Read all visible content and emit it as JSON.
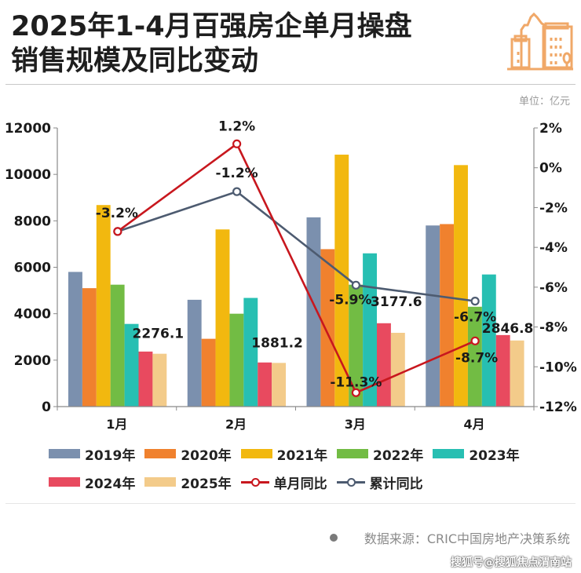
{
  "header": {
    "title_line1": "2025年1-4月百强房企单月操盘",
    "title_line2": "销售规模及同比变动",
    "icon": "city-buildings-icon",
    "icon_color": "#f0a868",
    "unit": "单位：亿元"
  },
  "chart_data": {
    "type": "bar",
    "title": "2025年1-4月百强房企单月操盘销售规模及同比变动",
    "categories": [
      "1月",
      "2月",
      "3月",
      "4月"
    ],
    "y_left": {
      "ticks": [
        "0",
        "2000",
        "4000",
        "6000",
        "8000",
        "10000",
        "12000"
      ],
      "range": [
        0,
        12000
      ],
      "unit": "亿元"
    },
    "y_right": {
      "ticks": [
        "2%",
        "0%",
        "-2%",
        "-4%",
        "-6%",
        "-8%",
        "-10%",
        "-12%"
      ],
      "range": [
        -12,
        2
      ]
    },
    "series": [
      {
        "name": "2019年",
        "type": "bar",
        "color": "#7b90ae",
        "values": [
          5800,
          4600,
          8150,
          7800
        ]
      },
      {
        "name": "2020年",
        "type": "bar",
        "color": "#f0812e",
        "values": [
          5100,
          2920,
          6780,
          7860
        ]
      },
      {
        "name": "2021年",
        "type": "bar",
        "color": "#f2b80f",
        "values": [
          8680,
          7630,
          10850,
          10400
        ]
      },
      {
        "name": "2022年",
        "type": "bar",
        "color": "#72bc44",
        "values": [
          5250,
          4000,
          5250,
          4300
        ]
      },
      {
        "name": "2023年",
        "type": "bar",
        "color": "#27bfb2",
        "values": [
          3560,
          4680,
          6600,
          5690
        ]
      },
      {
        "name": "2024年",
        "type": "bar",
        "color": "#e84a5f",
        "values": [
          2370,
          1900,
          3590,
          3080
        ]
      },
      {
        "name": "2025年",
        "type": "bar",
        "color": "#f3cb8a",
        "values": [
          2276.1,
          1881.2,
          3177.6,
          2846.8
        ],
        "labels": [
          "2276.1",
          "1881.2",
          "3177.6",
          "2846.8"
        ]
      },
      {
        "name": "单月同比",
        "type": "line",
        "axis": "right",
        "color": "#c8171e",
        "values": [
          -3.2,
          1.2,
          -11.3,
          -8.7
        ],
        "labels": [
          "",
          "1.2%",
          "-11.3%",
          "-8.7%"
        ]
      },
      {
        "name": "累计同比",
        "type": "line",
        "axis": "right",
        "color": "#4d5b70",
        "values": [
          -3.2,
          -1.2,
          -5.9,
          -6.7
        ],
        "labels": [
          "-3.2%",
          "-1.2%",
          "-5.9%",
          "-6.7%"
        ]
      }
    ],
    "legend_position": "bottom",
    "grid": false
  },
  "footer": {
    "source": "数据来源：CRIC中国房地产决策系统",
    "watermark": "搜狐号@搜狐焦点渭南站"
  }
}
